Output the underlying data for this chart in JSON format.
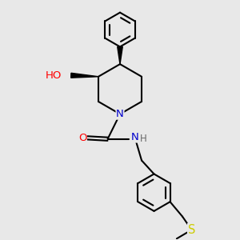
{
  "bg_color": "#e8e8e8",
  "atom_colors": {
    "C": "#000000",
    "N": "#0000cd",
    "O": "#ff0000",
    "S": "#cccc00",
    "H": "#696969"
  },
  "bond_color": "#000000",
  "line_width": 1.5,
  "font_size": 9.5,
  "figsize": [
    3.0,
    3.0
  ],
  "dpi": 100
}
